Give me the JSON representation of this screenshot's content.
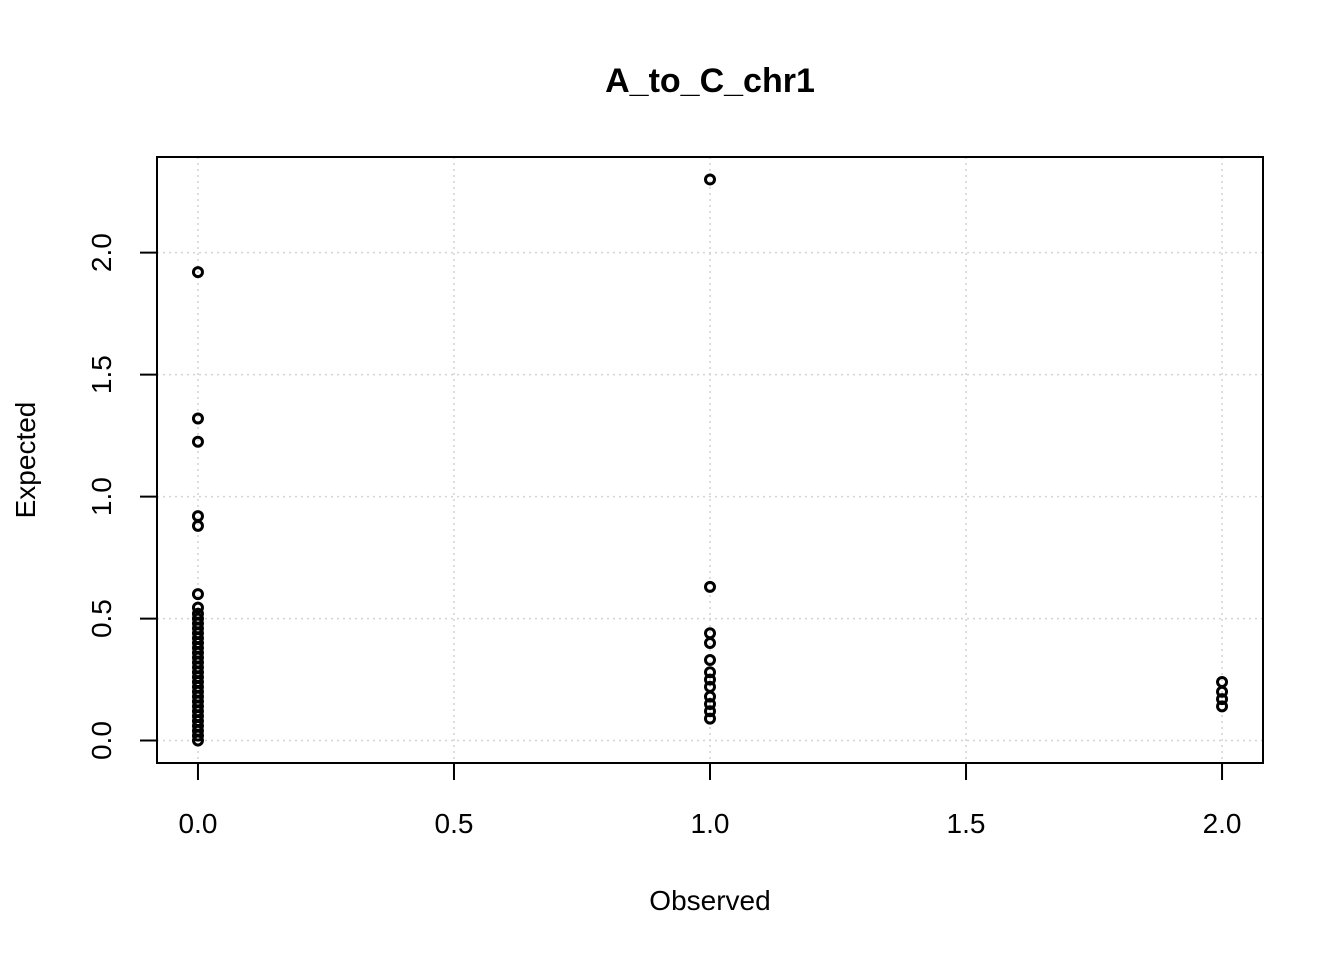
{
  "chart_data": {
    "type": "scatter",
    "title": "A_to_C_chr1",
    "x_label": "Observed",
    "y_label": "Expected",
    "color": "#000000",
    "grid": true,
    "xlim": [
      -0.08,
      2.08
    ],
    "ylim": [
      -0.092,
      2.392
    ],
    "xticks": [
      {
        "value": 0,
        "label": "0.0"
      },
      {
        "value": 0.5,
        "label": "0.5"
      },
      {
        "value": 1,
        "label": "1.0"
      },
      {
        "value": 1.5,
        "label": "1.5"
      },
      {
        "value": 2,
        "label": "2.0"
      }
    ],
    "yticks": [
      {
        "value": 0,
        "label": "0.0"
      },
      {
        "value": 0.5,
        "label": "0.5"
      },
      {
        "value": 1,
        "label": "1.0"
      },
      {
        "value": 1.5,
        "label": "1.5"
      },
      {
        "value": 2,
        "label": "2.0"
      }
    ],
    "x": [
      0,
      0,
      0,
      0,
      0,
      0,
      0,
      0,
      0,
      0,
      0,
      0,
      0,
      0,
      0,
      0,
      0,
      0,
      0,
      0,
      0,
      0,
      0,
      0,
      0,
      0,
      0,
      0,
      0,
      0,
      0,
      0,
      0,
      0,
      1,
      1,
      1,
      1,
      1,
      1,
      1,
      1,
      1,
      1,
      1,
      1,
      2,
      2,
      2,
      2
    ],
    "values": [
      1.92,
      1.32,
      1.225,
      0.92,
      0.88,
      0.6,
      0.545,
      0.52,
      0.5,
      0.48,
      0.46,
      0.44,
      0.42,
      0.4,
      0.38,
      0.36,
      0.34,
      0.32,
      0.3,
      0.28,
      0.26,
      0.24,
      0.22,
      0.2,
      0.18,
      0.16,
      0.14,
      0.12,
      0.1,
      0.08,
      0.06,
      0.04,
      0.02,
      0.0,
      2.3,
      0.63,
      0.44,
      0.4,
      0.33,
      0.28,
      0.25,
      0.22,
      0.18,
      0.15,
      0.12,
      0.09,
      0.24,
      0.2,
      0.17,
      0.14
    ]
  }
}
